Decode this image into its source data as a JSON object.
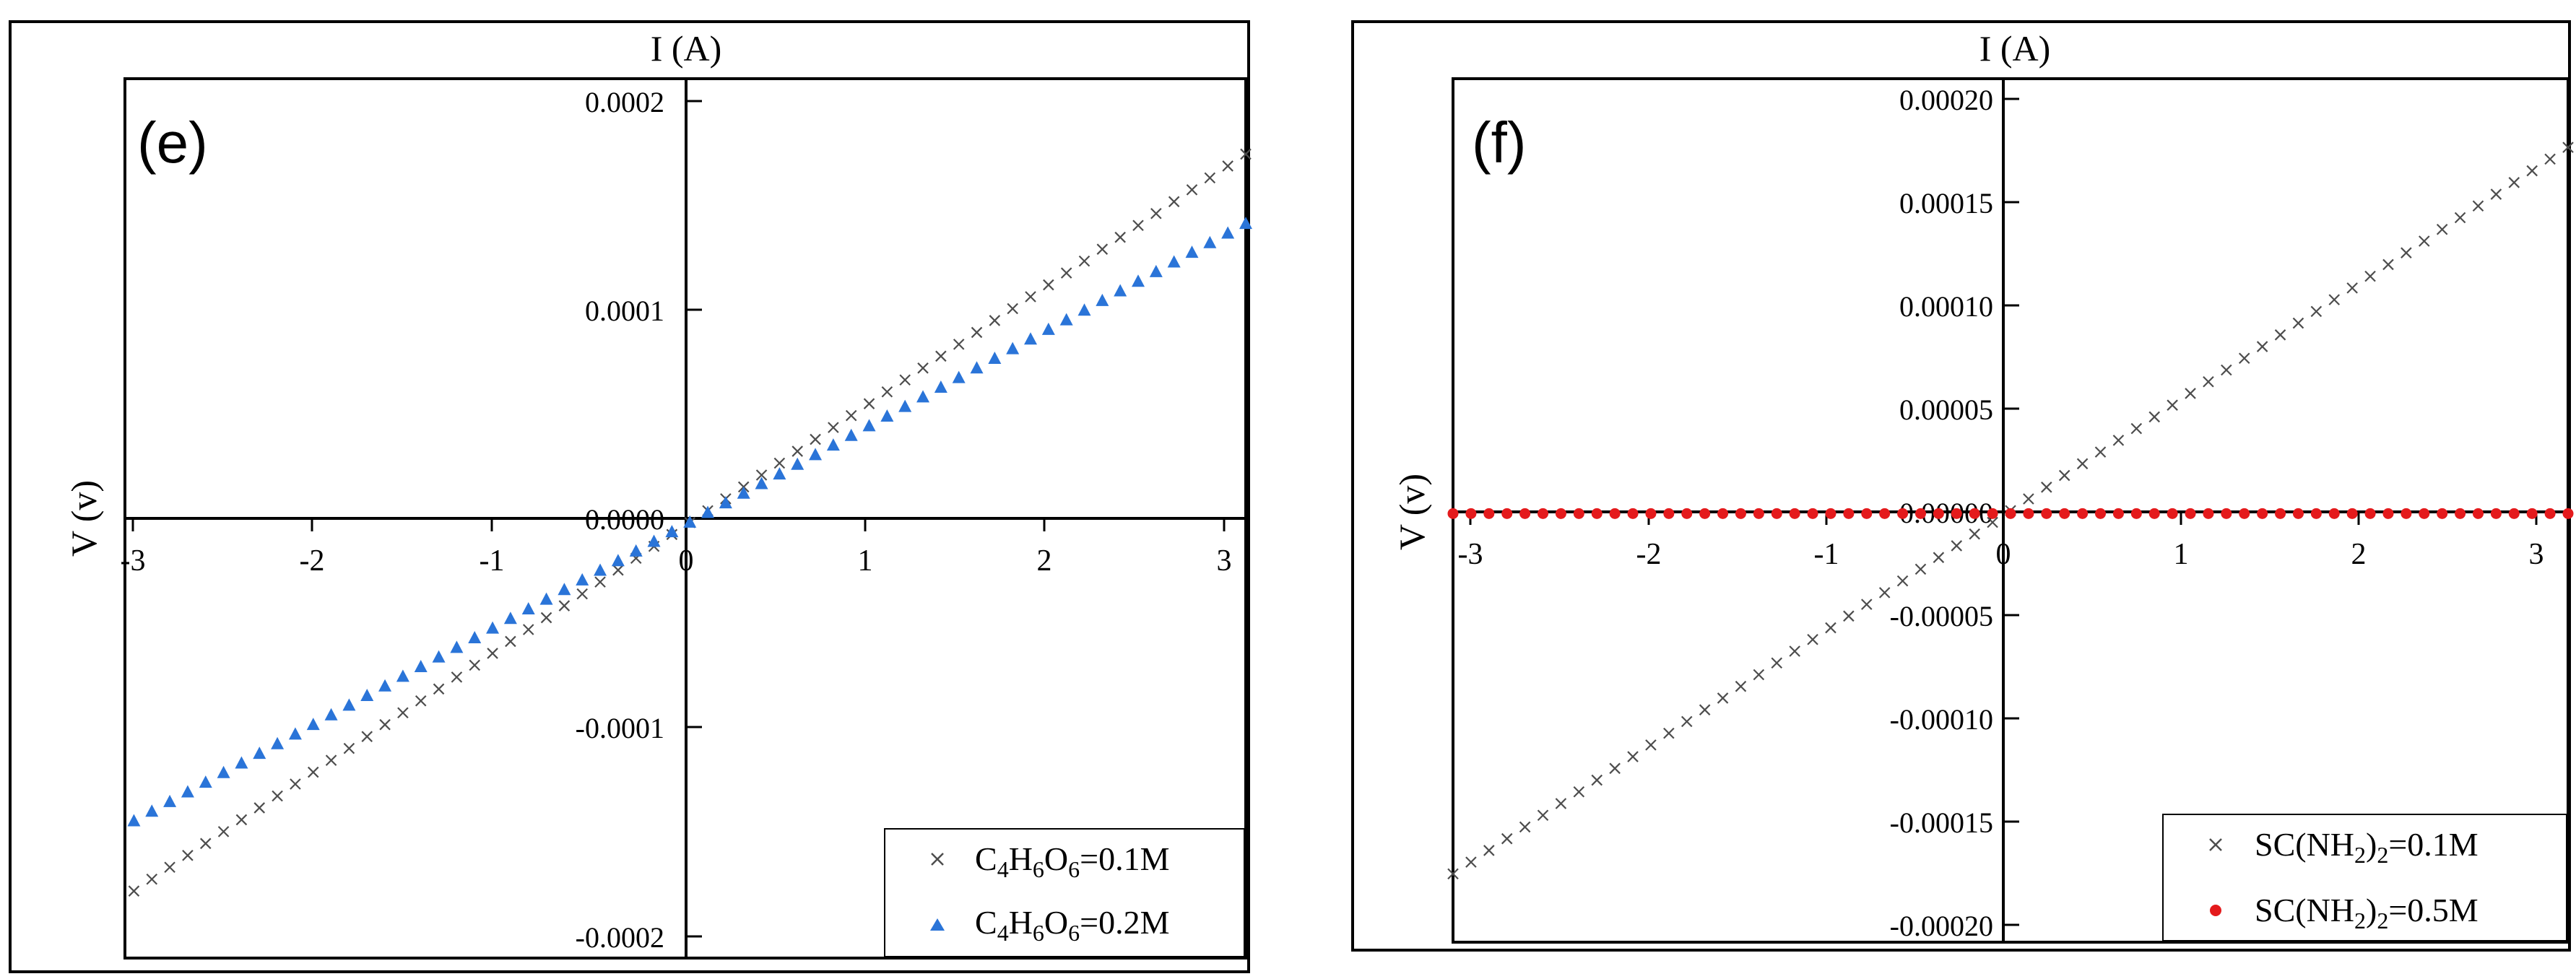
{
  "chart_data": [
    {
      "type": "scatter",
      "panel_label": "(e)",
      "xlabel": "I (A)",
      "ylabel": "V (v)",
      "xlim": [
        -3.15,
        3.1
      ],
      "ylim": [
        -0.000207,
        0.000211
      ],
      "x_ticks": [
        -3,
        -2,
        -1,
        0,
        1,
        2,
        3
      ],
      "x_tick_labels": [
        "-3",
        "-2",
        "-1",
        "0",
        "1",
        "2",
        "3"
      ],
      "y_ticks": [
        -0.0002,
        -0.0001,
        0,
        0.0001,
        0.0002
      ],
      "y_tick_labels": [
        "-0.0002",
        "-0.0001",
        "0.0000",
        "0.0001",
        "0.0002"
      ],
      "legend_position": "bottom-right",
      "series": [
        {
          "name": "C4H6O6=0.1M",
          "legend": {
            "base": "C",
            "parts": [
              [
                "C",
                ""
              ],
              [
                "4",
                "sub"
              ],
              [
                "H",
                ""
              ],
              [
                "6",
                "sub"
              ],
              [
                "O",
                ""
              ],
              [
                "6",
                "sub"
              ],
              [
                "=0.1M",
                ""
              ]
            ]
          },
          "marker": "x",
          "color": "#4d4d4d",
          "x_range": [
            -3.1,
            3.1
          ],
          "n_points": 63,
          "slope": 5.65e-05,
          "intercept": 0
        },
        {
          "name": "C4H6O6=0.2M",
          "legend": {
            "base": "C",
            "parts": [
              [
                "C",
                ""
              ],
              [
                "4",
                "sub"
              ],
              [
                "H",
                ""
              ],
              [
                "6",
                "sub"
              ],
              [
                "O",
                ""
              ],
              [
                "6",
                "sub"
              ],
              [
                "=0.2M",
                ""
              ]
            ]
          },
          "marker": "triangle",
          "color": "#2a74d8",
          "x_range": [
            -3.1,
            3.1
          ],
          "n_points": 63,
          "slope": 4.58e-05,
          "intercept": 0
        }
      ]
    },
    {
      "type": "scatter",
      "panel_label": "(f)",
      "xlabel": "I (A)",
      "ylabel": "V (v)",
      "xlim": [
        -3.05,
        3.1
      ],
      "ylim": [
        -0.000205,
        0.000208
      ],
      "x_ticks": [
        -3,
        -2,
        -1,
        0,
        1,
        2,
        3
      ],
      "x_tick_labels": [
        "-3",
        "-2",
        "-1",
        "0",
        "1",
        "2",
        "3"
      ],
      "y_ticks": [
        -0.0002,
        -0.00015,
        -0.0001,
        -5e-05,
        0,
        5e-05,
        0.0001,
        0.00015,
        0.0002
      ],
      "y_tick_labels": [
        "-0.00020",
        "-0.00015",
        "-0.00010",
        "-0.00005",
        "0.00000",
        "0.00005",
        "0.00010",
        "0.00015",
        "0.00020"
      ],
      "legend_position": "bottom-right",
      "series": [
        {
          "name": "SC(NH2)2=0.1M",
          "legend": {
            "parts": [
              [
                "SC(NH",
                ""
              ],
              [
                "2",
                "sub"
              ],
              [
                ")",
                ""
              ],
              [
                "2",
                "sub"
              ],
              [
                "=0.1M",
                ""
              ]
            ]
          },
          "marker": "x",
          "color": "#4d4d4d",
          "x_range": [
            -3.05,
            3.1
          ],
          "n_points": 63,
          "slope": 5.65e-05,
          "intercept": 0
        },
        {
          "name": "SC(NH2)2=0.5M",
          "legend": {
            "parts": [
              [
                "SC(NH",
                ""
              ],
              [
                "2",
                "sub"
              ],
              [
                ")",
                ""
              ],
              [
                "2",
                "sub"
              ],
              [
                "=0.5M",
                ""
              ]
            ]
          },
          "marker": "circle",
          "color": "#e41a1c",
          "x_range": [
            -3.05,
            3.1
          ],
          "n_points": 63,
          "slope": 0,
          "intercept": 0
        }
      ]
    }
  ]
}
